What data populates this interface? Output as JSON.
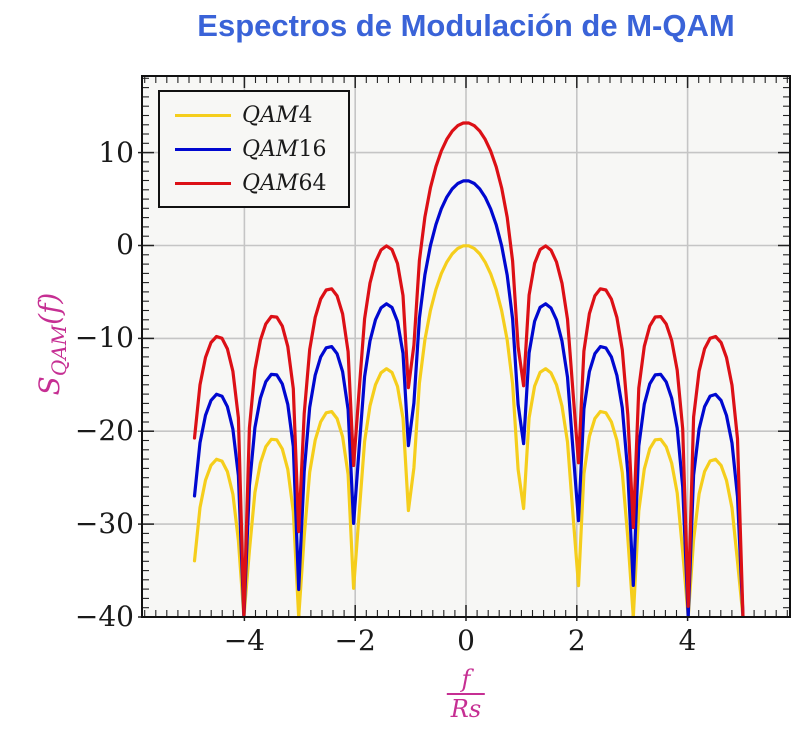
{
  "header": {
    "title": "Espectros de Modulación de M-QAM",
    "title_color": "#3a63d8"
  },
  "axes": {
    "xlabel": {
      "num": "f",
      "den": "Rs"
    },
    "ylabel": {
      "base": "S",
      "sub": "QAM",
      "rest": "(f)"
    },
    "label_color": "#c62f93"
  },
  "chart_data": {
    "type": "line",
    "title": "Espectros de Modulación de M-QAM",
    "xlabel": "f/Rs",
    "ylabel": "S_QAM(f)",
    "formula": "y_dB = offset_db + 20*log10(|sin(pi*x)/(pi*x)|), clipped at floor",
    "x_domain": [
      -4.9,
      5.0
    ],
    "samples": 101,
    "clip_floor_db": -40,
    "xlim": [
      -5.85,
      5.85
    ],
    "ylim": [
      -40,
      18.25
    ],
    "x_major_ticks": [
      -4,
      -2,
      0,
      2,
      4
    ],
    "x_tick_labels": [
      "−4",
      "−2",
      "0",
      "2",
      "4"
    ],
    "x_minor_step": 0.2,
    "y_major_ticks": [
      10,
      0,
      -10,
      -20,
      -30,
      -40
    ],
    "y_tick_labels": [
      "10",
      "0",
      "−10",
      "−20",
      "−30",
      "−40"
    ],
    "y_minor_step": 1,
    "grid": true,
    "grid_color": "#c5c5c5",
    "plot_bg": "#f7f7f5",
    "legend_position": "top-left",
    "series": [
      {
        "name": "QAM4",
        "label_prefix": "QAM",
        "label_suffix": "4",
        "color": "#F5CE1C",
        "offset_db": 0,
        "peak_db": 0
      },
      {
        "name": "QAM16",
        "label_prefix": "QAM",
        "label_suffix": "16",
        "color": "#0008D0",
        "offset_db": 6.99,
        "peak_db": 6.99
      },
      {
        "name": "QAM64",
        "label_prefix": "QAM",
        "label_suffix": "64",
        "color": "#DC1016",
        "offset_db": 13.22,
        "peak_db": 13.22
      }
    ]
  }
}
